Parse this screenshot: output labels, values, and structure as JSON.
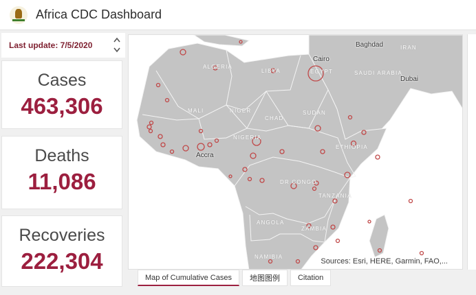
{
  "header": {
    "title": "Africa CDC Dashboard",
    "logo_icon": "africa-cdc-logo"
  },
  "update": {
    "label": "Last update: 7/5/2020"
  },
  "stats": {
    "cases": {
      "label": "Cases",
      "value": "463,306"
    },
    "deaths": {
      "label": "Deaths",
      "value": "11,086"
    },
    "recoveries": {
      "label": "Recoveries",
      "value": "222,304"
    }
  },
  "map": {
    "region_labels": {
      "algeria": "ALGERIA",
      "libya": "LIBYA",
      "egypt": "EGYPT",
      "saudi": "SAUDI ARABIA",
      "iran": "IRAN",
      "mali": "MALI",
      "niger": "NIGER",
      "chad": "CHAD",
      "sudan": "SUDAN",
      "nigeria": "NIGERIA",
      "ethiopia": "ETHIOPIA",
      "drc": "DR CONGO",
      "tanzania": "TANZANIA",
      "angola": "ANGOLA",
      "zambia": "ZAMBIA",
      "namibia": "NAMIBIA"
    },
    "city_labels": {
      "cairo": "Cairo",
      "baghdad": "Baghdad",
      "dubai": "Dubai",
      "accra": "Accra"
    },
    "attribution": "Sources: Esri, HERE, Garmin, FAO,...",
    "colors": {
      "water": "#ffffff",
      "land": "#c4c4c4",
      "border": "#f4f4f4",
      "marker": "#c04848"
    }
  },
  "tabs": [
    "Map of Cumulative Cases",
    "地图图例",
    "Citation"
  ],
  "colors": {
    "accent": "#9c1f3f",
    "update_text": "#7e1f2f"
  }
}
